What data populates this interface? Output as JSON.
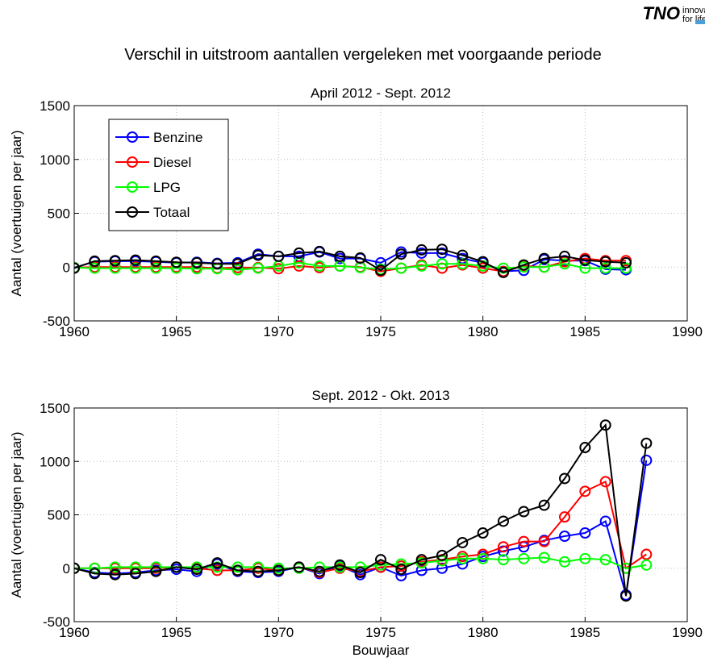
{
  "header": {
    "logo": "TNO",
    "tagline": [
      "innovatio",
      "for life"
    ],
    "title": "Verschil in uitstroom aantallen vergeleken met voorgaande periode"
  },
  "chart_data": [
    {
      "type": "line",
      "title": "April 2012 - Sept. 2012",
      "ylabel": "Aantal (voertuigen per jaar)",
      "x": [
        1960,
        1961,
        1962,
        1963,
        1964,
        1965,
        1966,
        1967,
        1968,
        1969,
        1970,
        1971,
        1972,
        1973,
        1974,
        1975,
        1976,
        1977,
        1978,
        1979,
        1980,
        1981,
        1982,
        1983,
        1984,
        1985,
        1986,
        1987
      ],
      "series": [
        {
          "name": "Benzine",
          "color": "#0000ff",
          "values": [
            -5,
            50,
            55,
            55,
            50,
            40,
            45,
            35,
            40,
            120,
            100,
            100,
            140,
            80,
            80,
            40,
            140,
            130,
            130,
            80,
            40,
            -40,
            -30,
            70,
            60,
            60,
            -20,
            -25
          ]
        },
        {
          "name": "Diesel",
          "color": "#ff0000",
          "values": [
            -5,
            0,
            0,
            0,
            0,
            0,
            0,
            -10,
            -5,
            -5,
            -15,
            10,
            -5,
            10,
            0,
            -40,
            -10,
            20,
            -10,
            20,
            -10,
            -40,
            10,
            0,
            50,
            80,
            60,
            60
          ]
        },
        {
          "name": "LPG",
          "color": "#00ff00",
          "values": [
            -5,
            -10,
            -10,
            -10,
            -10,
            -10,
            -15,
            -15,
            -25,
            -10,
            10,
            40,
            10,
            10,
            -5,
            -20,
            -10,
            10,
            30,
            30,
            10,
            -10,
            0,
            0,
            30,
            -10,
            -10,
            -10
          ]
        },
        {
          "name": "Totaal",
          "color": "#000000",
          "values": [
            -10,
            55,
            60,
            65,
            55,
            45,
            40,
            30,
            30,
            110,
            100,
            130,
            145,
            100,
            85,
            -30,
            120,
            160,
            165,
            110,
            50,
            -50,
            20,
            80,
            100,
            65,
            50,
            40
          ]
        }
      ],
      "xlim": [
        1960,
        1990
      ],
      "xticks": [
        1960,
        1965,
        1970,
        1975,
        1980,
        1985,
        1990
      ],
      "ylim": [
        -500,
        1500
      ],
      "yticks": [
        -500,
        0,
        500,
        1000,
        1500
      ],
      "grid": true,
      "legend": "upper left"
    },
    {
      "type": "line",
      "title": "Sept. 2012 - Okt. 2013",
      "ylabel": "Aantal (voertuigen per jaar)",
      "xlabel": "Bouwjaar",
      "x": [
        1960,
        1961,
        1962,
        1963,
        1964,
        1965,
        1966,
        1967,
        1968,
        1969,
        1970,
        1971,
        1972,
        1973,
        1974,
        1975,
        1976,
        1977,
        1978,
        1979,
        1980,
        1981,
        1982,
        1983,
        1984,
        1985,
        1986,
        1987,
        1988
      ],
      "series": [
        {
          "color": "#0000ff",
          "values": [
            0,
            -40,
            -50,
            -40,
            -20,
            -10,
            -30,
            40,
            -30,
            -40,
            -30,
            10,
            -50,
            20,
            -60,
            10,
            -70,
            -20,
            0,
            40,
            110,
            160,
            200,
            260,
            300,
            330,
            440,
            -250,
            1010
          ]
        },
        {
          "color": "#ff0000",
          "values": [
            0,
            0,
            0,
            0,
            0,
            10,
            0,
            -20,
            -20,
            0,
            -20,
            10,
            -40,
            0,
            -30,
            10,
            20,
            60,
            80,
            110,
            130,
            200,
            250,
            250,
            480,
            720,
            810,
            0,
            130
          ]
        },
        {
          "color": "#00ff00",
          "values": [
            0,
            0,
            10,
            10,
            10,
            10,
            10,
            10,
            10,
            10,
            0,
            0,
            10,
            10,
            10,
            30,
            40,
            50,
            70,
            90,
            90,
            80,
            90,
            100,
            60,
            90,
            80,
            0,
            30
          ]
        },
        {
          "color": "#000000",
          "values": [
            0,
            -50,
            -60,
            -50,
            -30,
            10,
            -10,
            50,
            -20,
            -30,
            -20,
            10,
            -30,
            30,
            -40,
            80,
            -10,
            80,
            120,
            240,
            330,
            440,
            530,
            590,
            840,
            1130,
            1340,
            -260,
            1170
          ]
        }
      ],
      "xlim": [
        1960,
        1990
      ],
      "xticks": [
        1960,
        1965,
        1970,
        1975,
        1980,
        1985,
        1990
      ],
      "ylim": [
        -500,
        1500
      ],
      "yticks": [
        -500,
        0,
        500,
        1000,
        1500
      ],
      "grid": true
    }
  ]
}
